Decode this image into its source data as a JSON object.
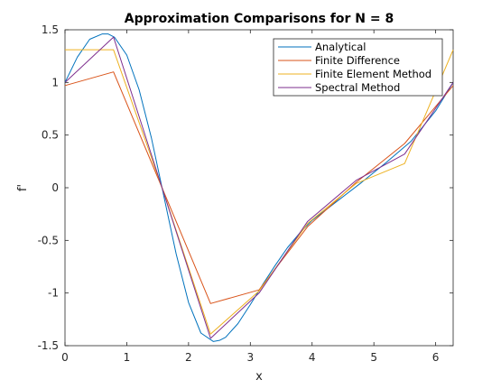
{
  "chart_data": {
    "type": "line",
    "title": "Approximation Comparisons for N = 8",
    "xlabel": "x",
    "ylabel": "f'",
    "xlim": [
      0,
      6.2832
    ],
    "ylim": [
      -1.5,
      1.5
    ],
    "xticks": [
      0,
      1,
      2,
      3,
      4,
      5,
      6
    ],
    "yticks": [
      -1.5,
      -1,
      -0.5,
      0,
      0.5,
      1,
      1.5
    ],
    "xtick_labels": [
      "0",
      "1",
      "2",
      "3",
      "4",
      "5",
      "6"
    ],
    "ytick_labels": [
      "-1.5",
      "-1",
      "-0.5",
      "0",
      "0.5",
      "1",
      "1.5"
    ],
    "grid": false,
    "legend_position": "top-right",
    "series": [
      {
        "name": "Analytical",
        "color": "#0072bd",
        "x": [
          0,
          0.2,
          0.4,
          0.6,
          0.7,
          0.8,
          1.0,
          1.2,
          1.4,
          1.5708,
          1.8,
          2.0,
          2.2,
          2.4,
          2.5,
          2.6,
          2.8,
          3.0,
          3.2,
          3.4,
          3.6,
          3.8,
          4.0,
          4.4,
          4.8,
          5.2,
          5.6,
          6.0,
          6.2832
        ],
        "y": [
          1.0,
          1.24,
          1.41,
          1.46,
          1.46,
          1.43,
          1.26,
          0.93,
          0.47,
          0.0,
          -0.63,
          -1.09,
          -1.38,
          -1.46,
          -1.45,
          -1.42,
          -1.29,
          -1.11,
          -0.92,
          -0.74,
          -0.57,
          -0.43,
          -0.31,
          -0.13,
          0.05,
          0.24,
          0.44,
          0.73,
          1.0
        ]
      },
      {
        "name": "Finite Difference",
        "color": "#d95319",
        "x": [
          0,
          0.7854,
          1.5708,
          2.3562,
          3.1416,
          3.927,
          4.7124,
          5.4978,
          6.2832
        ],
        "y": [
          0.97,
          1.1,
          0.0,
          -1.1,
          -0.97,
          -0.37,
          0.05,
          0.42,
          0.97
        ]
      },
      {
        "name": "Finite Element Method",
        "color": "#edb120",
        "x": [
          0,
          0.7854,
          1.5708,
          2.3562,
          3.1416,
          3.927,
          4.7124,
          5.4978,
          6.2832
        ],
        "y": [
          1.31,
          1.31,
          0.0,
          -1.39,
          -0.98,
          -0.34,
          0.04,
          0.23,
          1.31
        ]
      },
      {
        "name": "Spectral Method",
        "color": "#7e2f8e",
        "x": [
          0,
          0.7854,
          1.5708,
          2.3562,
          3.1416,
          3.927,
          4.7124,
          5.4978,
          6.2832
        ],
        "y": [
          1.0,
          1.43,
          0.0,
          -1.43,
          -1.0,
          -0.32,
          0.07,
          0.32,
          1.0
        ]
      }
    ]
  }
}
